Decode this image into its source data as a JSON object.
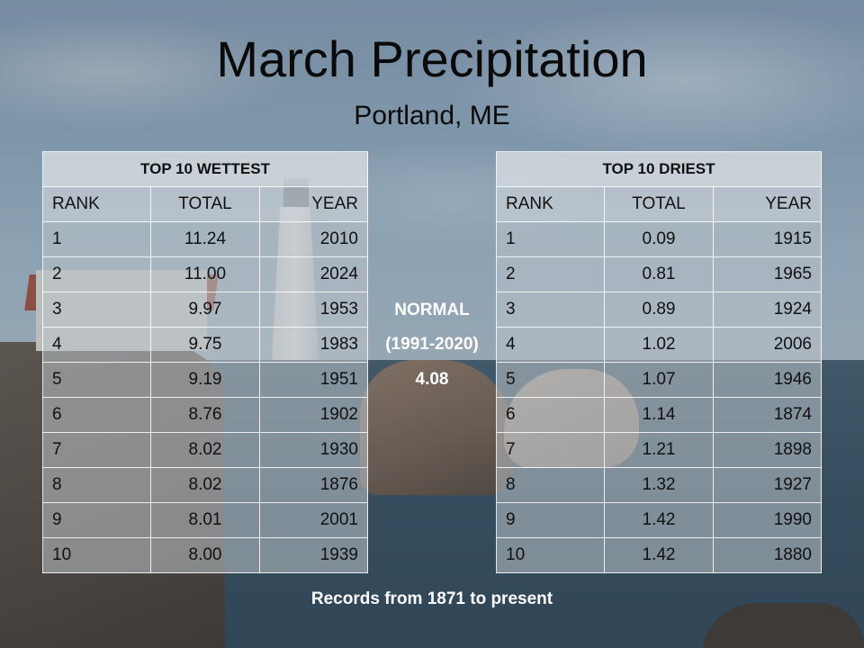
{
  "slide": {
    "title": "March Precipitation",
    "subtitle": "Portland, ME",
    "footer": "Records from 1871 to present"
  },
  "normal": {
    "label": "NORMAL",
    "period": "(1991-2020)",
    "value": "4.08"
  },
  "wettest": {
    "heading": "TOP 10 WETTEST",
    "columns": [
      "RANK",
      "TOTAL",
      "YEAR"
    ],
    "rows": [
      [
        "1",
        "11.24",
        "2010"
      ],
      [
        "2",
        "11.00",
        "2024"
      ],
      [
        "3",
        "9.97",
        "1953"
      ],
      [
        "4",
        "9.75",
        "1983"
      ],
      [
        "5",
        "9.19",
        "1951"
      ],
      [
        "6",
        "8.76",
        "1902"
      ],
      [
        "7",
        "8.02",
        "1930"
      ],
      [
        "8",
        "8.02",
        "1876"
      ],
      [
        "9",
        "8.01",
        "2001"
      ],
      [
        "10",
        "8.00",
        "1939"
      ]
    ]
  },
  "driest": {
    "heading": "TOP 10 DRIEST",
    "columns": [
      "RANK",
      "TOTAL",
      "YEAR"
    ],
    "rows": [
      [
        "1",
        "0.09",
        "1915"
      ],
      [
        "2",
        "0.81",
        "1965"
      ],
      [
        "3",
        "0.89",
        "1924"
      ],
      [
        "4",
        "1.02",
        "2006"
      ],
      [
        "5",
        "1.07",
        "1946"
      ],
      [
        "6",
        "1.14",
        "1874"
      ],
      [
        "7",
        "1.21",
        "1898"
      ],
      [
        "8",
        "1.32",
        "1927"
      ],
      [
        "9",
        "1.42",
        "1990"
      ],
      [
        "10",
        "1.42",
        "1880"
      ]
    ]
  },
  "colors": {
    "title_text": "#0a0a0a",
    "overlay_text": "#ffffff"
  }
}
